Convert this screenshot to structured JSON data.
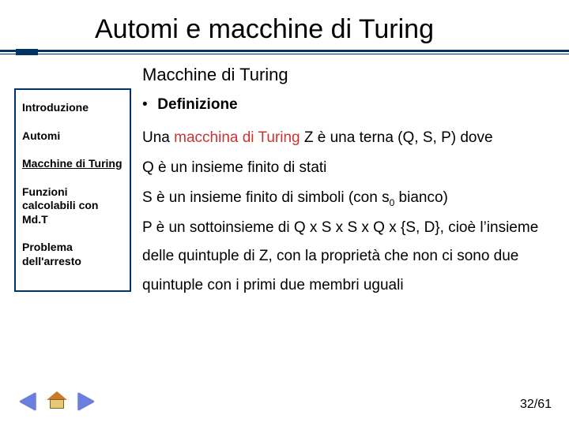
{
  "colors": {
    "accent": "#003366",
    "term_highlight": "#cc3333",
    "arrow_fill": "#6a7fe0",
    "home_roof": "#cc7a2a",
    "home_wall": "#e8c878",
    "background": "#ffffff",
    "text": "#000000"
  },
  "title": "Automi e macchine di Turing",
  "subtitle": "Macchine di Turing",
  "sidebar": {
    "items": [
      {
        "label": "Introduzione",
        "active": false
      },
      {
        "label": "Automi",
        "active": false
      },
      {
        "label": "Macchine di Turing",
        "active": true
      },
      {
        "label": "Funzioni calcolabili con Md.T",
        "active": false
      },
      {
        "label": "Problema dell'arresto",
        "active": false
      }
    ]
  },
  "content": {
    "bullet_label": "Definizione",
    "line1_pre": "Una ",
    "line1_term": "macchina di Turing",
    "line1_post": " Z è una terna (Q, S, P) dove",
    "line2": "Q è un insieme finito di stati",
    "line3_pre": "S è un insieme finito di simboli (con s",
    "line3_sub": "0",
    "line3_post": " bianco)",
    "line4": "P è un sottoinsieme di Q x S x S x Q x {S, D}, cioè l’insieme delle quintuple di Z, con la proprietà che non ci sono due quintuple con i primi due membri uguali"
  },
  "footer": {
    "page_label": "32/61"
  }
}
